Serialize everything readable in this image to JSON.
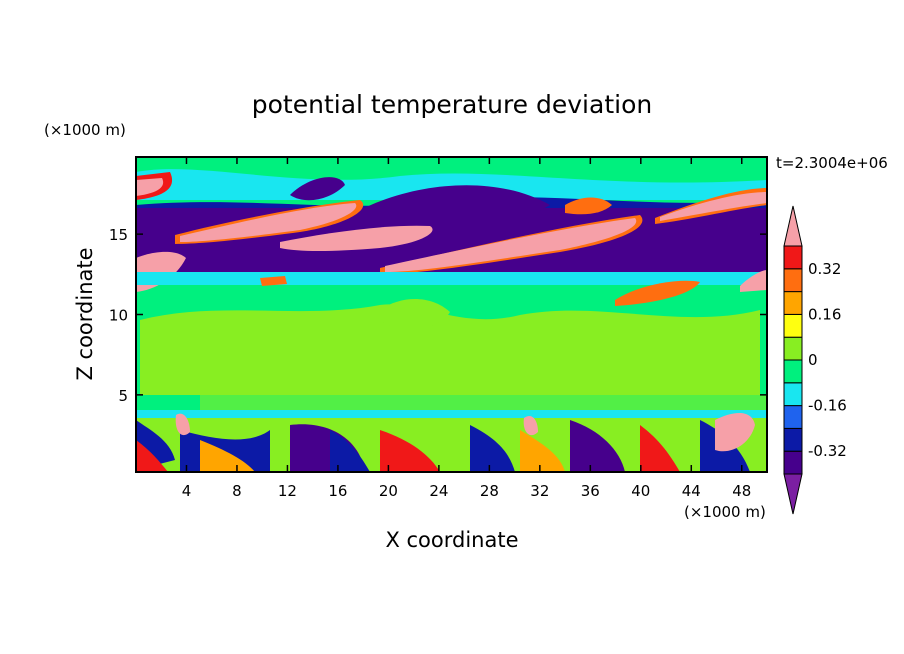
{
  "chart_data": {
    "type": "heatmap",
    "title": "potential temperature deviation",
    "xlabel": "X coordinate",
    "ylabel": "Z coordinate",
    "x_unit": "(×1000 m)",
    "y_unit": "(×1000 m)",
    "time_label": "t=2.3004e+06",
    "xlim": [
      0,
      50
    ],
    "ylim": [
      0.2,
      19.8
    ],
    "x_ticks": [
      4,
      8,
      12,
      16,
      20,
      24,
      28,
      32,
      36,
      40,
      44,
      48
    ],
    "y_ticks": [
      5,
      10,
      15
    ],
    "colorbar": {
      "levels": [
        -0.4,
        -0.32,
        -0.24,
        -0.16,
        -0.08,
        0,
        0.08,
        0.16,
        0.24,
        0.32,
        0.4
      ],
      "tick_labels": [
        "0.32",
        "0.16",
        "0",
        "-0.16",
        "-0.32"
      ],
      "tick_values": [
        0.32,
        0.16,
        0,
        -0.16,
        -0.32
      ],
      "colors": [
        "#7b1fa2",
        "#46008c",
        "#0c1aa6",
        "#1f63ee",
        "#19e6f0",
        "#00f07e",
        "#88ee22",
        "#ffff10",
        "#ffa500",
        "#ff6e10",
        "#f01818",
        "#f6a0a8"
      ],
      "extend": "both"
    },
    "grid": false,
    "legend_position": "right"
  }
}
